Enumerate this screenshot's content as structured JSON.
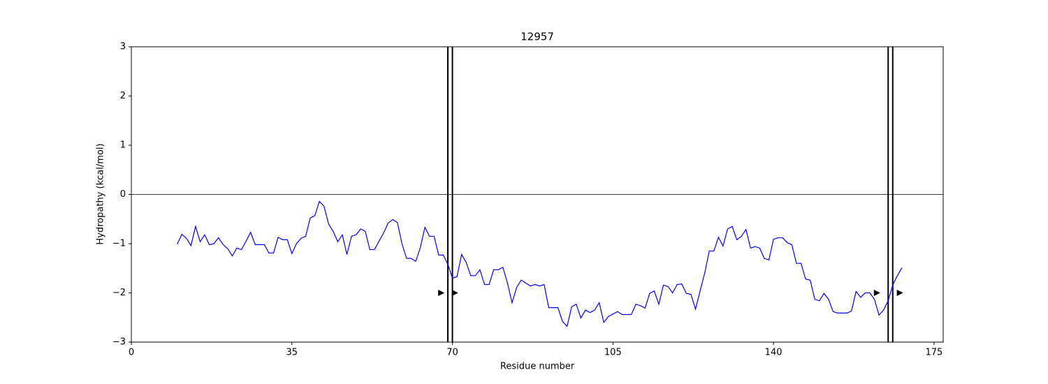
{
  "chart_data": {
    "type": "line",
    "title": "12957",
    "xlabel": "Residue number",
    "ylabel": "Hydropathy (kcal/mol)",
    "xlim": [
      0,
      177
    ],
    "ylim": [
      -3,
      3
    ],
    "xticks": [
      0,
      35,
      70,
      105,
      140,
      175
    ],
    "yticks": [
      {
        "value": -3,
        "label": "−3"
      },
      {
        "value": -2,
        "label": "−2"
      },
      {
        "value": -1,
        "label": "−1"
      },
      0,
      1,
      2,
      3
    ],
    "hline": 0,
    "vlines": [
      69,
      70,
      165,
      166
    ],
    "markers": {
      "x": [
        67.5,
        70.5,
        162.5,
        167.5
      ],
      "y": [
        -2,
        -2,
        -2,
        -2
      ],
      "color": "#000000"
    },
    "x": [
      10,
      11,
      12,
      13,
      14,
      15,
      16,
      17,
      18,
      19,
      20,
      21,
      22,
      23,
      24,
      25,
      26,
      27,
      28,
      29,
      30,
      31,
      32,
      33,
      34,
      35,
      36,
      37,
      38,
      39,
      40,
      41,
      42,
      43,
      44,
      45,
      46,
      47,
      48,
      49,
      50,
      51,
      52,
      53,
      54,
      55,
      56,
      57,
      58,
      59,
      60,
      61,
      62,
      63,
      64,
      65,
      66,
      67,
      68,
      69,
      70,
      71,
      72,
      73,
      74,
      75,
      76,
      77,
      78,
      79,
      80,
      81,
      82,
      83,
      84,
      85,
      86,
      87,
      88,
      89,
      90,
      91,
      92,
      93,
      94,
      95,
      96,
      97,
      98,
      99,
      100,
      101,
      102,
      103,
      104,
      105,
      106,
      107,
      108,
      109,
      110,
      111,
      112,
      113,
      114,
      115,
      116,
      117,
      118,
      119,
      120,
      121,
      122,
      123,
      124,
      125,
      126,
      127,
      128,
      129,
      130,
      131,
      132,
      133,
      134,
      135,
      136,
      137,
      138,
      139,
      140,
      141,
      142,
      143,
      144,
      145,
      146,
      147,
      148,
      149,
      150,
      151,
      152,
      153,
      154,
      155,
      156,
      157,
      158,
      159,
      160,
      161,
      162,
      163,
      164,
      165,
      166,
      167,
      168
    ],
    "series": [
      {
        "color": "#0000ff",
        "values": [
          -1.01,
          -0.81,
          -0.89,
          -1.04,
          -0.65,
          -0.96,
          -0.82,
          -1.02,
          -1.0,
          -0.88,
          -1.02,
          -1.1,
          -1.25,
          -1.09,
          -1.12,
          -0.95,
          -0.77,
          -1.02,
          -1.02,
          -1.02,
          -1.19,
          -1.19,
          -0.87,
          -0.92,
          -0.92,
          -1.2,
          -1.0,
          -0.89,
          -0.85,
          -0.48,
          -0.43,
          -0.14,
          -0.24,
          -0.6,
          -0.75,
          -0.96,
          -0.82,
          -1.22,
          -0.85,
          -0.82,
          -0.7,
          -0.75,
          -1.12,
          -1.12,
          -0.95,
          -0.78,
          -0.58,
          -0.51,
          -0.57,
          -1.0,
          -1.3,
          -1.3,
          -1.36,
          -1.08,
          -0.67,
          -0.85,
          -0.85,
          -1.23,
          -1.23,
          -1.42,
          -1.7,
          -1.67,
          -1.22,
          -1.38,
          -1.65,
          -1.65,
          -1.53,
          -1.83,
          -1.83,
          -1.53,
          -1.53,
          -1.48,
          -1.8,
          -2.2,
          -1.89,
          -1.74,
          -1.8,
          -1.86,
          -1.83,
          -1.86,
          -1.83,
          -2.3,
          -2.3,
          -2.3,
          -2.58,
          -2.68,
          -2.28,
          -2.23,
          -2.51,
          -2.35,
          -2.4,
          -2.35,
          -2.2,
          -2.6,
          -2.48,
          -2.43,
          -2.38,
          -2.44,
          -2.44,
          -2.44,
          -2.23,
          -2.26,
          -2.31,
          -2.01,
          -1.96,
          -2.23,
          -1.84,
          -1.87,
          -2.0,
          -1.83,
          -1.82,
          -2.01,
          -2.03,
          -2.33,
          -1.96,
          -1.6,
          -1.15,
          -1.15,
          -0.87,
          -1.05,
          -0.7,
          -0.65,
          -0.92,
          -0.85,
          -0.71,
          -1.09,
          -1.06,
          -1.09,
          -1.3,
          -1.33,
          -0.91,
          -0.88,
          -0.88,
          -0.98,
          -1.02,
          -1.4,
          -1.4,
          -1.72,
          -1.74,
          -2.13,
          -2.16,
          -2.01,
          -2.13,
          -2.38,
          -2.41,
          -2.41,
          -2.41,
          -2.37,
          -1.97,
          -2.09,
          -2.0,
          -2.0,
          -2.13,
          -2.45,
          -2.35,
          -2.16,
          -1.84,
          -1.65,
          -1.49
        ]
      }
    ]
  }
}
